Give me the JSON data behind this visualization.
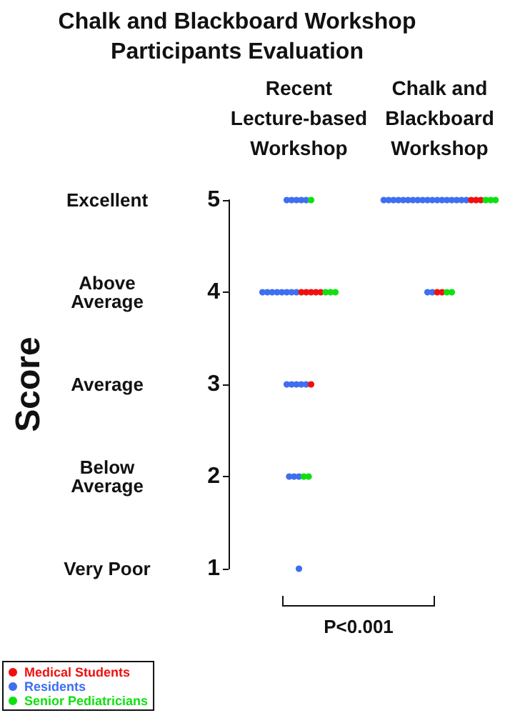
{
  "chart_data": {
    "type": "scatter",
    "title": "Chalk and Blackboard Workshop\nParticipants Evaluation",
    "ylabel": "Score",
    "categories": [
      "Recent\nLecture-based\nWorkshop",
      "Chalk and\nBlackboard\nWorkshop"
    ],
    "series": [
      {
        "name": "Residents",
        "color": "#3f6ff0",
        "x": [
          "Recent\nLecture-based\nWorkshop",
          "Recent\nLecture-based\nWorkshop",
          "Recent\nLecture-based\nWorkshop",
          "Recent\nLecture-based\nWorkshop",
          "Recent\nLecture-based\nWorkshop",
          "Recent\nLecture-based\nWorkshop",
          "Recent\nLecture-based\nWorkshop",
          "Recent\nLecture-based\nWorkshop",
          "Recent\nLecture-based\nWorkshop",
          "Recent\nLecture-based\nWorkshop",
          "Recent\nLecture-based\nWorkshop",
          "Recent\nLecture-based\nWorkshop",
          "Recent\nLecture-based\nWorkshop",
          "Recent\nLecture-based\nWorkshop",
          "Recent\nLecture-based\nWorkshop",
          "Recent\nLecture-based\nWorkshop",
          "Recent\nLecture-based\nWorkshop",
          "Recent\nLecture-based\nWorkshop",
          "Recent\nLecture-based\nWorkshop",
          "Recent\nLecture-based\nWorkshop",
          "Recent\nLecture-based\nWorkshop",
          "Recent\nLecture-based\nWorkshop",
          "Chalk and\nBlackboard\nWorkshop",
          "Chalk and\nBlackboard\nWorkshop",
          "Chalk and\nBlackboard\nWorkshop",
          "Chalk and\nBlackboard\nWorkshop",
          "Chalk and\nBlackboard\nWorkshop",
          "Chalk and\nBlackboard\nWorkshop",
          "Chalk and\nBlackboard\nWorkshop",
          "Chalk and\nBlackboard\nWorkshop",
          "Chalk and\nBlackboard\nWorkshop",
          "Chalk and\nBlackboard\nWorkshop",
          "Chalk and\nBlackboard\nWorkshop",
          "Chalk and\nBlackboard\nWorkshop",
          "Chalk and\nBlackboard\nWorkshop",
          "Chalk and\nBlackboard\nWorkshop",
          "Chalk and\nBlackboard\nWorkshop",
          "Chalk and\nBlackboard\nWorkshop",
          "Chalk and\nBlackboard\nWorkshop",
          "Chalk and\nBlackboard\nWorkshop",
          "Chalk and\nBlackboard\nWorkshop",
          "Chalk and\nBlackboard\nWorkshop"
        ],
        "values": [
          5,
          5,
          5,
          5,
          5,
          4,
          4,
          4,
          4,
          4,
          4,
          4,
          4,
          3,
          3,
          3,
          3,
          3,
          2,
          2,
          2,
          1,
          5,
          5,
          5,
          5,
          5,
          5,
          5,
          5,
          5,
          5,
          5,
          5,
          5,
          5,
          5,
          5,
          5,
          5,
          4,
          4
        ]
      },
      {
        "name": "Medical Students",
        "color": "#f01010",
        "x": [
          "Recent\nLecture-based\nWorkshop",
          "Recent\nLecture-based\nWorkshop",
          "Recent\nLecture-based\nWorkshop",
          "Recent\nLecture-based\nWorkshop",
          "Recent\nLecture-based\nWorkshop",
          "Recent\nLecture-based\nWorkshop",
          "Chalk and\nBlackboard\nWorkshop",
          "Chalk and\nBlackboard\nWorkshop",
          "Chalk and\nBlackboard\nWorkshop",
          "Chalk and\nBlackboard\nWorkshop",
          "Chalk and\nBlackboard\nWorkshop"
        ],
        "values": [
          4,
          4,
          4,
          4,
          4,
          3,
          5,
          5,
          5,
          4,
          4
        ]
      },
      {
        "name": "Senior Pediatricians",
        "color": "#10e010",
        "x": [
          "Recent\nLecture-based\nWorkshop",
          "Recent\nLecture-based\nWorkshop",
          "Recent\nLecture-based\nWorkshop",
          "Recent\nLecture-based\nWorkshop",
          "Recent\nLecture-based\nWorkshop",
          "Recent\nLecture-based\nWorkshop",
          "Chalk and\nBlackboard\nWorkshop",
          "Chalk and\nBlackboard\nWorkshop",
          "Chalk and\nBlackboard\nWorkshop",
          "Chalk and\nBlackboard\nWorkshop",
          "Chalk and\nBlackboard\nWorkshop"
        ],
        "values": [
          5,
          4,
          4,
          4,
          2,
          2,
          5,
          5,
          5,
          4,
          4
        ]
      }
    ],
    "ylim": [
      1,
      5
    ],
    "yticks": [
      1,
      2,
      3,
      4,
      5
    ],
    "annotations": [
      "Excellent",
      "Above\nAverage",
      "Average",
      "Below\nAverage",
      "Very Poor",
      "P<0.001"
    ],
    "legend": "bottom left",
    "grid": false
  }
}
